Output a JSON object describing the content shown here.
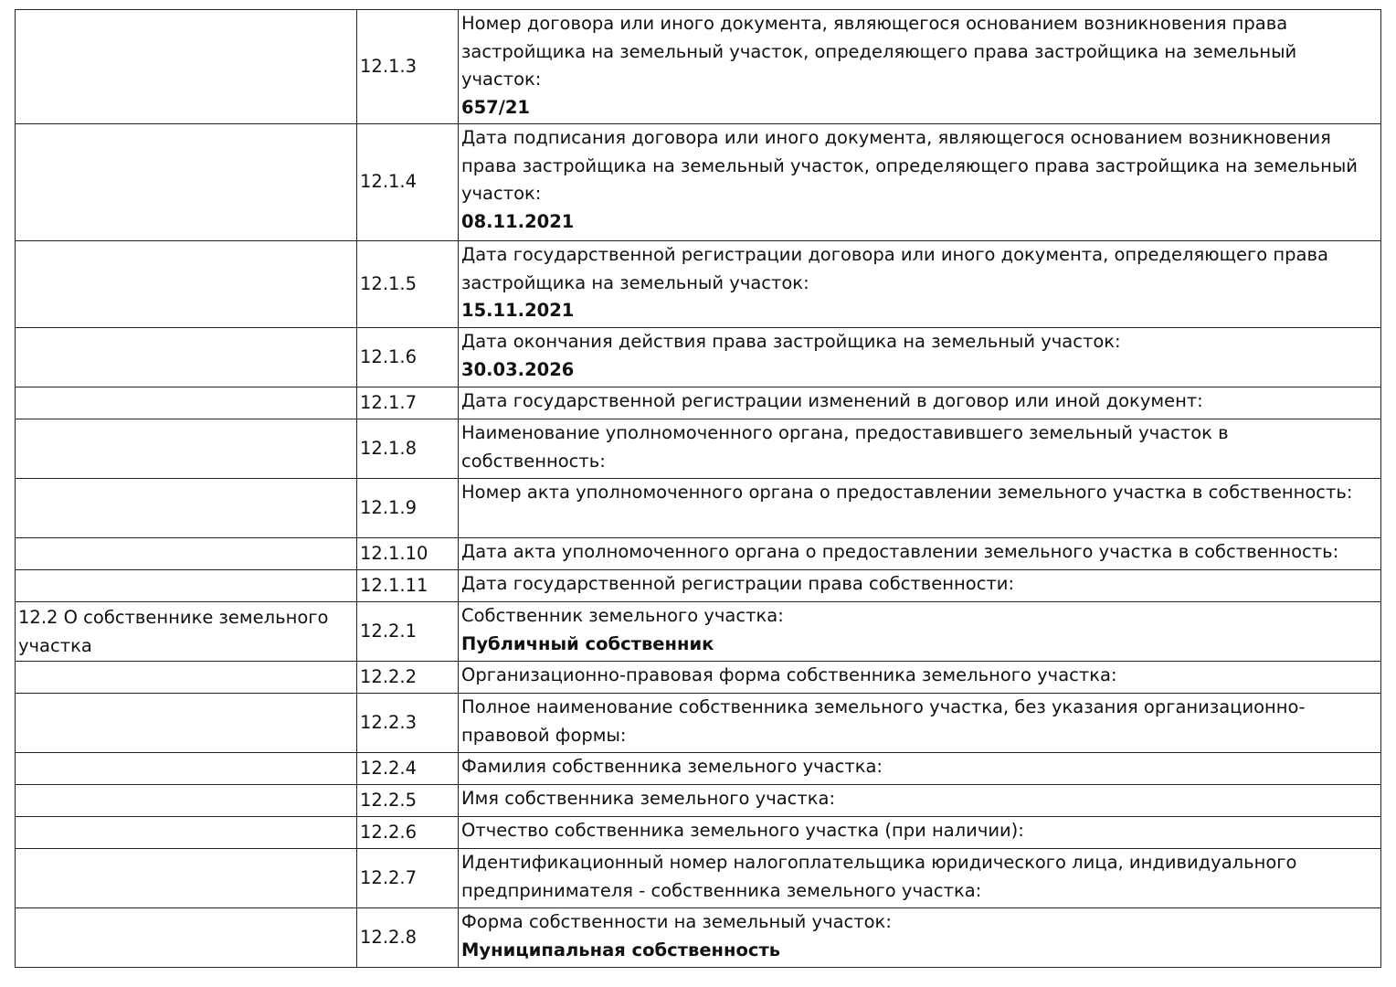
{
  "rows": [
    {
      "section": "",
      "num": "12.1.3",
      "label": "Номер договора или иного документа, являющегося основанием возникновения права застройщика на земельный участок, определяющего права застройщика на земельный участок:",
      "value": "657/21"
    },
    {
      "section": "",
      "num": "12.1.4",
      "label": "Дата подписания договора или иного документа, являющегося основанием возникновения права застройщика на земельный участок, определяющего права застройщика на земельный участок:",
      "value": "08.11.2021"
    },
    {
      "section": "",
      "num": "12.1.5",
      "label": "Дата государственной регистрации договора или иного документа, определяющего права застройщика на земельный участок:",
      "value": "15.11.2021"
    },
    {
      "section": "",
      "num": "12.1.6",
      "label": "Дата окончания действия права застройщика на земельный участок:",
      "value": "30.03.2026"
    },
    {
      "section": "",
      "num": "12.1.7",
      "label": "Дата государственной регистрации изменений в договор или иной документ:",
      "value": ""
    },
    {
      "section": "",
      "num": "12.1.8",
      "label": "Наименование уполномоченного органа, предоставившего земельный участок в собственность:",
      "value": ""
    },
    {
      "section": "",
      "num": "12.1.9",
      "label": "Номер акта уполномоченного органа о предоставлении земельного участка в собственность:",
      "value": ""
    },
    {
      "section": "",
      "num": "12.1.10",
      "label": "Дата акта уполномоченного органа о предоставлении земельного участка в собственность:",
      "value": ""
    },
    {
      "section": "",
      "num": "12.1.11",
      "label": "Дата государственной регистрации права собственности:",
      "value": ""
    },
    {
      "section": "12.2 О собственнике земельного участка",
      "num": "12.2.1",
      "label": "Собственник земельного участка:",
      "value": "Публичный собственник"
    },
    {
      "section": "",
      "num": "12.2.2",
      "label": "Организационно-правовая форма собственника земельного участка:",
      "value": ""
    },
    {
      "section": "",
      "num": "12.2.3",
      "label": "Полное наименование собственника земельного участка, без указания организационно-правовой формы:",
      "value": ""
    },
    {
      "section": "",
      "num": "12.2.4",
      "label": "Фамилия собственника земельного участка:",
      "value": ""
    },
    {
      "section": "",
      "num": "12.2.5",
      "label": "Имя собственника земельного участка:",
      "value": ""
    },
    {
      "section": "",
      "num": "12.2.6",
      "label": "Отчество собственника земельного участка (при наличии):",
      "value": ""
    },
    {
      "section": "",
      "num": "12.2.7",
      "label": "Идентификационный номер налогоплательщика юридического лица, индивидуального предпринимателя - собственника земельного участка:",
      "value": ""
    },
    {
      "section": "",
      "num": "12.2.8",
      "label": "Форма собственности на земельный участок:",
      "value": "Муниципальная собственность"
    }
  ]
}
